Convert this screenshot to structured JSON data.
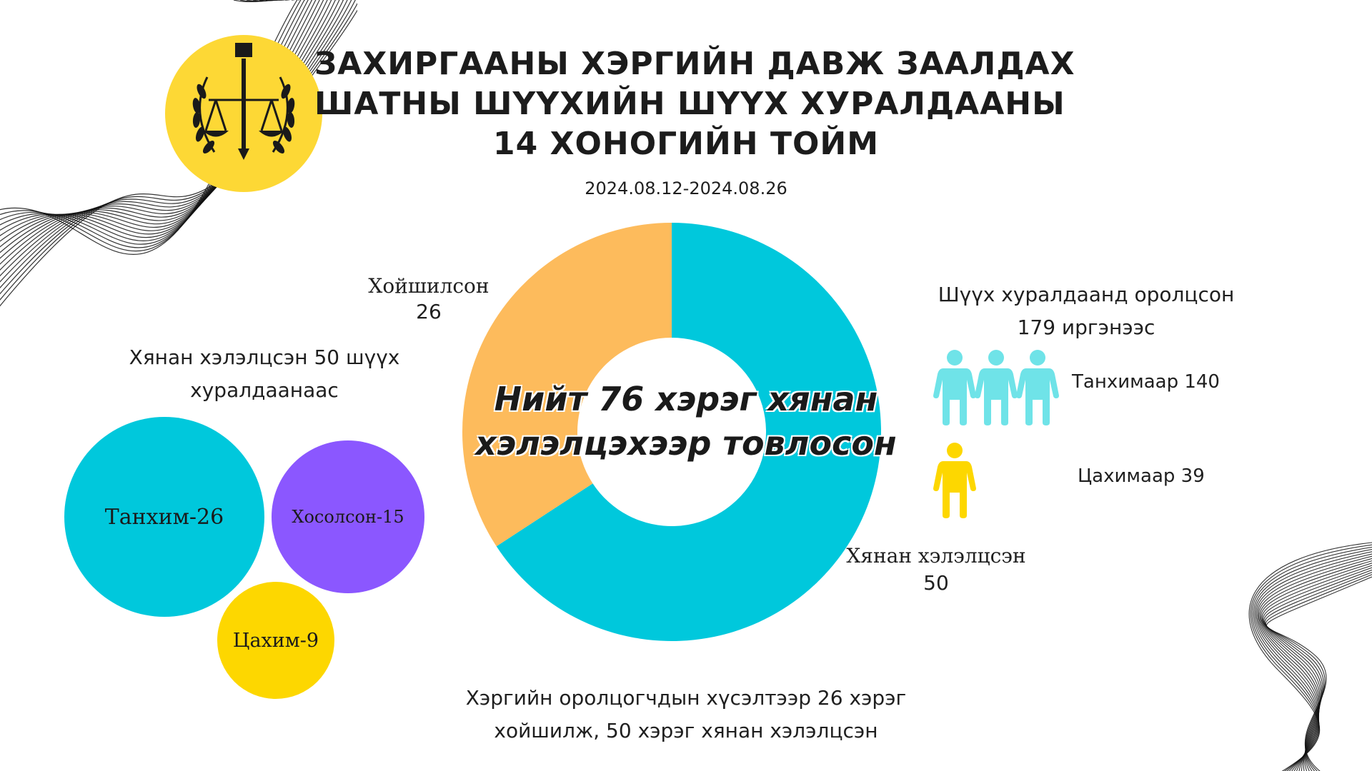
{
  "title_lines": [
    "ЗАХИРГААНЫ ХЭРГИЙН ДАВЖ ЗААЛДАХ",
    "ШАТНЫ ШҮҮХИЙН ШҮҮХ ХУРАЛДААНЫ",
    "14 ХОНОГИЙН ТОЙМ"
  ],
  "date_range": "2024.08.12-2024.08.26",
  "emblem": {
    "icon": "court-emblem-icon",
    "color": "#FDD835"
  },
  "chart_data": [
    {
      "type": "pie",
      "variant": "donut",
      "center_text_lines": [
        "Нийт 76 хэрэг хянан",
        "хэлэлцэхээр товлосон"
      ],
      "slices": [
        {
          "label": "Хянан хэлэлцсэн",
          "value": 50,
          "value_text": "50",
          "color": "#00C8DC"
        },
        {
          "label": "Хойшилсон",
          "value": 26,
          "value_text": "26",
          "color": "#FDBB5C"
        }
      ]
    },
    {
      "type": "bubble",
      "title_lines": [
        "Хянан хэлэлцсэн 50 шүүх",
        "хуралдаанаас"
      ],
      "bubbles": [
        {
          "label": "Танхим-26",
          "value": 26,
          "color": "#00C8DC"
        },
        {
          "label": "Хосолсон-15",
          "value": 15,
          "color": "#8B57FF"
        },
        {
          "label": "Цахим-9",
          "value": 9,
          "color": "#FDD700"
        }
      ]
    }
  ],
  "participants": {
    "title_lines": [
      "Шүүх хуралдаанд оролцсон",
      "179 иргэнээс"
    ],
    "in_person": {
      "label": "Танхимаар 140",
      "icon": "person-icon",
      "icon_count": 3,
      "color": "#6FE3E8"
    },
    "online": {
      "label": "Цахимаар 39",
      "icon": "person-icon",
      "icon_count": 1,
      "color": "#FDD700"
    }
  },
  "bottom_text_lines": [
    "Хэргийн оролцогчдын хүсэлтээр 26 хэрэг",
    "хойшилж, 50 хэрэг хянан хэлэлцсэн"
  ]
}
